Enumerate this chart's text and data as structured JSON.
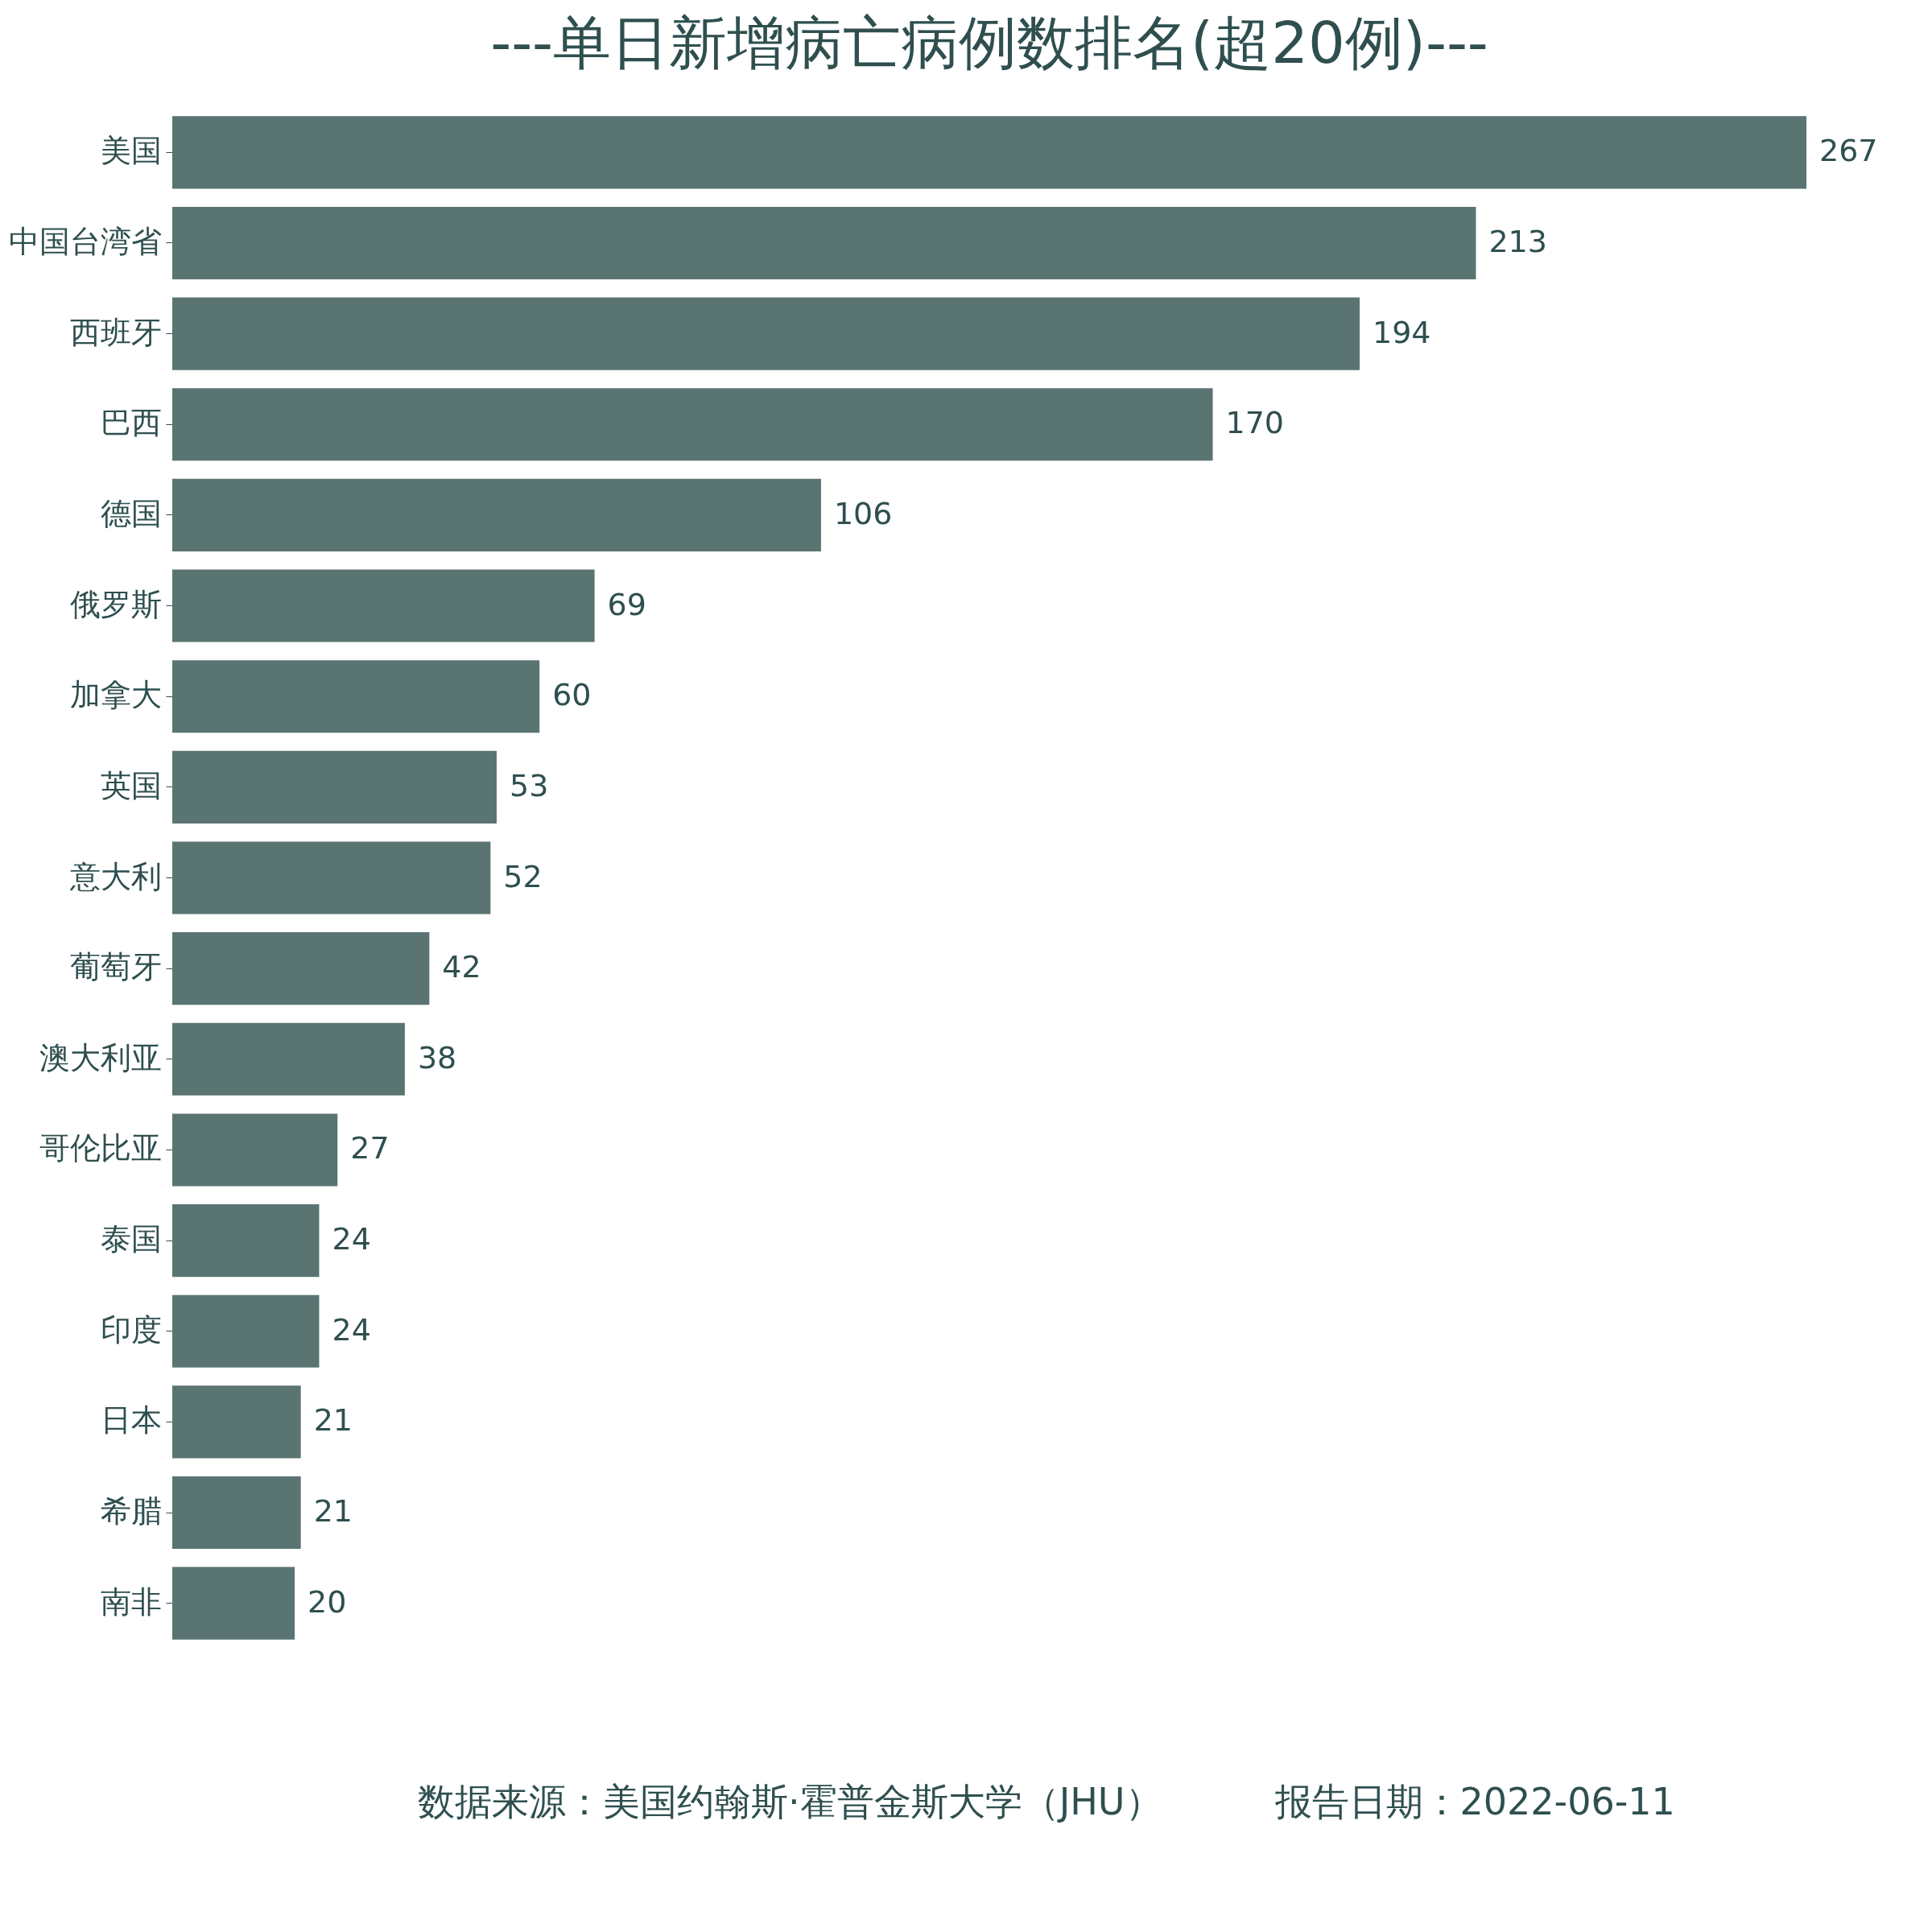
{
  "chart_data": {
    "type": "bar",
    "orientation": "horizontal",
    "title": "---单日新增病亡病例数排名(超20例)---",
    "categories": [
      "美国",
      "中国台湾省",
      "西班牙",
      "巴西",
      "德国",
      "俄罗斯",
      "加拿大",
      "英国",
      "意大利",
      "葡萄牙",
      "澳大利亚",
      "哥伦比亚",
      "泰国",
      "印度",
      "日本",
      "希腊",
      "南非"
    ],
    "values": [
      267,
      213,
      194,
      170,
      106,
      69,
      60,
      53,
      52,
      42,
      38,
      27,
      24,
      24,
      21,
      21,
      20
    ],
    "color": "#5a7472",
    "data_labels": true,
    "tick_labels": "y",
    "annotations": [
      "数据来源：美国约翰斯·霍普金斯大学（JHU）",
      "报告日期：2022-06-11"
    ]
  }
}
